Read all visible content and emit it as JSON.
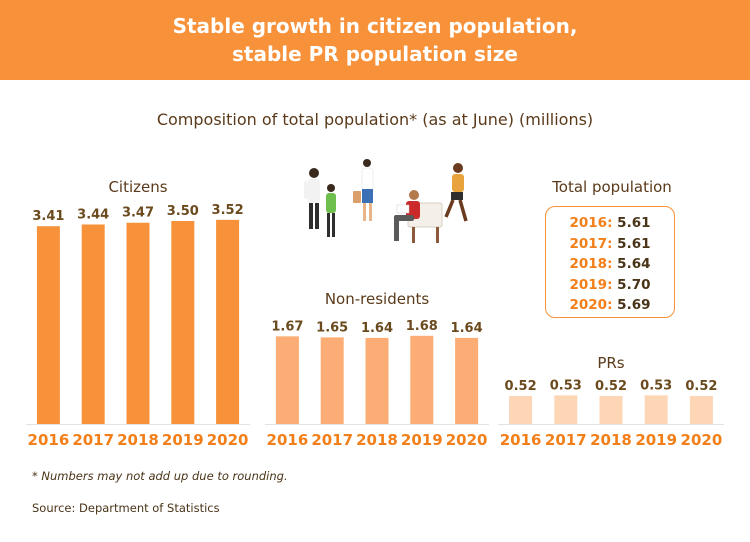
{
  "header": {
    "title_line1": "Stable growth in citizen population,",
    "title_line2": "stable PR population size"
  },
  "subtitle": "Composition of total population* (as at June) (millions)",
  "colors": {
    "banner": "#f7913a",
    "citizens_bar": "#f7913a",
    "nonresidents_bar": "#fbad75",
    "prs_bar": "#fdd6b5",
    "year_label": "#f27f19",
    "value_label": "#6b4a1e"
  },
  "chart_data": [
    {
      "type": "bar",
      "title": "Citizens",
      "categories": [
        "2016",
        "2017",
        "2018",
        "2019",
        "2020"
      ],
      "values": [
        3.41,
        3.44,
        3.47,
        3.5,
        3.52
      ]
    },
    {
      "type": "bar",
      "title": "Non-residents",
      "categories": [
        "2016",
        "2017",
        "2018",
        "2019",
        "2020"
      ],
      "values": [
        1.67,
        1.65,
        1.64,
        1.68,
        1.64
      ]
    },
    {
      "type": "bar",
      "title": "PRs",
      "categories": [
        "2016",
        "2017",
        "2018",
        "2019",
        "2020"
      ],
      "values": [
        0.52,
        0.53,
        0.52,
        0.53,
        0.52
      ]
    }
  ],
  "total_population": {
    "title": "Total population",
    "rows": [
      {
        "year": "2016:",
        "value": "5.61"
      },
      {
        "year": "2017:",
        "value": "5.61"
      },
      {
        "year": "2018:",
        "value": "5.64"
      },
      {
        "year": "2019:",
        "value": "5.70"
      },
      {
        "year": "2020:",
        "value": "5.69"
      }
    ]
  },
  "illustration_icon": "people-walking-and-sitting-on-bench-icon",
  "footnote": "* Numbers may not add up due to rounding.",
  "source": "Source: Department of Statistics"
}
